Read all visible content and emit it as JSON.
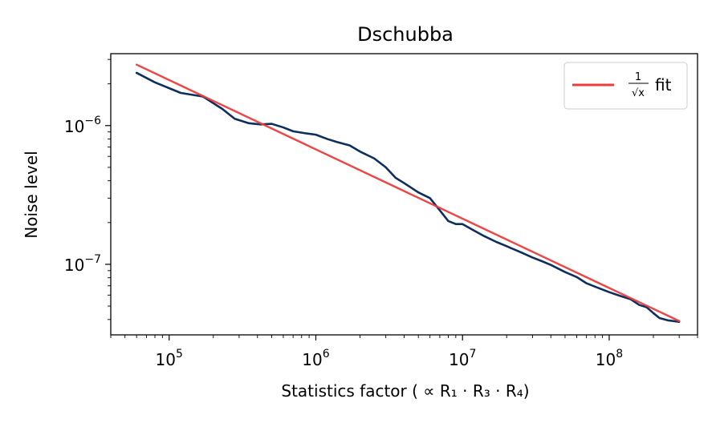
{
  "chart_data": {
    "type": "line",
    "title": "Dschubba",
    "xlabel": "Statistics factor ( ∝ R₁ · R₃ · R₄)",
    "ylabel": "Noise level",
    "xscale": "log",
    "yscale": "log",
    "xlim": [
      40000,
      400000000
    ],
    "ylim": [
      3.1e-08,
      3.3e-06
    ],
    "x_ticks": [
      {
        "base": "10",
        "exp": "5"
      },
      {
        "base": "10",
        "exp": "6"
      },
      {
        "base": "10",
        "exp": "7"
      },
      {
        "base": "10",
        "exp": "8"
      }
    ],
    "y_ticks": [
      {
        "base": "10",
        "exp": "−6"
      },
      {
        "base": "10",
        "exp": "−7"
      }
    ],
    "legend": {
      "location": "upper right",
      "entries": [
        {
          "label_num": "1",
          "label_den": "√x",
          "label_suffix": "fit",
          "color": "#ee3b3b"
        }
      ]
    },
    "series": [
      {
        "name": "noise level",
        "color": "#0d2f5e",
        "x": [
          60000,
          80000,
          120000,
          170000,
          230000,
          280000,
          350000,
          420000,
          500000,
          600000,
          700000,
          850000,
          1000000,
          1200000,
          1400000,
          1700000,
          2000000,
          2500000,
          3000000,
          3500000,
          4000000,
          4500000,
          5000000,
          6000000,
          7000000,
          8000000,
          9000000,
          10000000,
          12000000,
          14000000,
          17000000,
          20000000,
          25000000,
          30000000,
          35000000,
          40000000,
          50000000,
          60000000,
          70000000,
          80000000,
          100000000,
          120000000,
          140000000,
          160000000,
          180000000,
          200000000,
          220000000,
          250000000,
          300000000
        ],
        "y": [
          2.4e-06,
          2.05e-06,
          1.72e-06,
          1.62e-06,
          1.32e-06,
          1.12e-06,
          1.04e-06,
          1.02e-06,
          1.03e-06,
          9.7e-07,
          9.1e-07,
          8.8e-07,
          8.6e-07,
          8e-07,
          7.6e-07,
          7.2e-07,
          6.5e-07,
          5.8e-07,
          5e-07,
          4.2e-07,
          3.85e-07,
          3.55e-07,
          3.3e-07,
          3e-07,
          2.45e-07,
          2.05e-07,
          1.95e-07,
          1.95e-07,
          1.75e-07,
          1.6e-07,
          1.45e-07,
          1.35e-07,
          1.22e-07,
          1.12e-07,
          1.05e-07,
          9.9e-08,
          8.8e-08,
          8.1e-08,
          7.3e-08,
          6.9e-08,
          6.3e-08,
          5.9e-08,
          5.6e-08,
          5.1e-08,
          4.9e-08,
          4.45e-08,
          4.1e-08,
          3.95e-08,
          3.85e-08
        ]
      },
      {
        "name": "1/√x fit",
        "color": "#ee3b3b",
        "x": [
          60000,
          300000000
        ],
        "y": [
          2.75e-06,
          3.9e-08
        ]
      }
    ]
  }
}
